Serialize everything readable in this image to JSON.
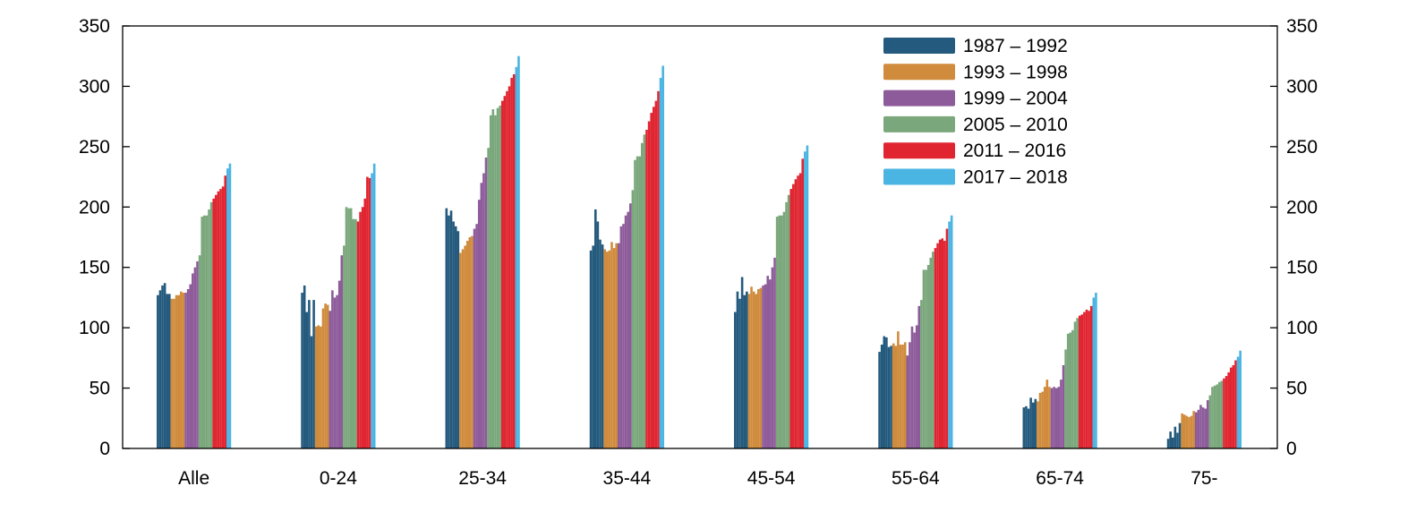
{
  "chart_data": {
    "type": "bar",
    "title": "",
    "xlabel": "",
    "ylabel": "",
    "ylim": [
      0,
      350
    ],
    "yticks": [
      0,
      50,
      100,
      150,
      200,
      250,
      300,
      350
    ],
    "y_axis_both_sides": true,
    "grid": false,
    "legend_placement": "top-right",
    "categories": [
      "Alle",
      "0-24",
      "25-34",
      "35-44",
      "45-54",
      "55-64",
      "65-74",
      "75-"
    ],
    "series": [
      {
        "name": "1987 – 1992",
        "color": "#245a7d",
        "values": [
          [
            127,
            131,
            135,
            137,
            128,
            128
          ],
          [
            129,
            135,
            113,
            123,
            93,
            123
          ],
          [
            199,
            193,
            197,
            188,
            184,
            180
          ],
          [
            164,
            168,
            198,
            188,
            173,
            169
          ],
          [
            113,
            130,
            124,
            142,
            127,
            130
          ],
          [
            80,
            86,
            93,
            92,
            84,
            85
          ],
          [
            34,
            35,
            33,
            42,
            38,
            41
          ],
          [
            8,
            14,
            9,
            18,
            13,
            21
          ]
        ]
      },
      {
        "name": "1993 – 1998",
        "color": "#d08b3c",
        "values": [
          [
            124,
            124,
            127,
            127,
            130,
            129
          ],
          [
            101,
            102,
            101,
            116,
            120,
            119
          ],
          [
            162,
            165,
            168,
            172,
            175,
            176
          ],
          [
            165,
            163,
            164,
            171,
            166,
            170
          ],
          [
            128,
            134,
            130,
            128,
            132,
            133
          ],
          [
            87,
            85,
            97,
            86,
            86,
            88
          ],
          [
            39,
            46,
            47,
            51,
            57,
            51
          ],
          [
            29,
            28,
            27,
            26,
            27,
            31
          ]
        ]
      },
      {
        "name": "1999 – 2004",
        "color": "#8d5b9a",
        "values": [
          [
            129,
            132,
            136,
            145,
            150,
            155
          ],
          [
            114,
            131,
            125,
            127,
            139,
            160
          ],
          [
            182,
            186,
            206,
            220,
            228,
            241
          ],
          [
            170,
            184,
            186,
            193,
            196,
            203
          ],
          [
            135,
            136,
            143,
            140,
            150,
            158
          ],
          [
            77,
            88,
            101,
            96,
            102,
            118
          ],
          [
            50,
            51,
            50,
            51,
            57,
            69
          ],
          [
            30,
            32,
            36,
            34,
            33,
            40
          ]
        ]
      },
      {
        "name": "2005 – 2010",
        "color": "#7aa77b",
        "values": [
          [
            160,
            192,
            193,
            193,
            198,
            204
          ],
          [
            168,
            200,
            199,
            199,
            190,
            190
          ],
          [
            249,
            276,
            281,
            276,
            282,
            284
          ],
          [
            214,
            239,
            242,
            242,
            253,
            260
          ],
          [
            192,
            193,
            193,
            196,
            204,
            210
          ],
          [
            123,
            148,
            148,
            152,
            158,
            163
          ],
          [
            82,
            95,
            96,
            98,
            105,
            108
          ],
          [
            44,
            51,
            52,
            53,
            55,
            56
          ]
        ]
      },
      {
        "name": "2011 – 2016",
        "color": "#e02531",
        "values": [
          [
            207,
            210,
            213,
            215,
            217,
            226
          ],
          [
            188,
            196,
            200,
            207,
            225,
            224
          ],
          [
            288,
            292,
            296,
            300,
            307,
            310
          ],
          [
            264,
            271,
            278,
            283,
            288,
            296
          ],
          [
            215,
            219,
            223,
            226,
            228,
            240
          ],
          [
            166,
            170,
            173,
            174,
            172,
            182
          ],
          [
            110,
            111,
            113,
            115,
            114,
            118
          ],
          [
            58,
            60,
            63,
            67,
            69,
            73
          ]
        ]
      },
      {
        "name": "2017 – 2018",
        "color": "#4ab4e2",
        "values": [
          [
            232,
            236
          ],
          [
            228,
            236
          ],
          [
            316,
            325
          ],
          [
            307,
            317
          ],
          [
            246,
            251
          ],
          [
            188,
            193
          ],
          [
            125,
            129
          ],
          [
            76,
            81
          ]
        ]
      }
    ]
  }
}
